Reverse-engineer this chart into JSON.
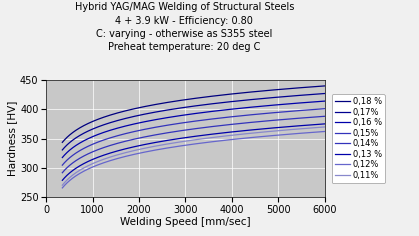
{
  "title_lines": [
    "Hybrid YAG/MAG Welding of Structural Steels",
    "4 + 3.9 kW - Efficiency: 0.80",
    "C: varying - otherwise as S355 steel",
    "Preheat temperature: 20 deg C"
  ],
  "xlabel": "Welding Speed [mm/sec]",
  "ylabel": "Hardness [HV]",
  "xlim": [
    0,
    6000
  ],
  "ylim": [
    250,
    450
  ],
  "xticks": [
    0,
    1000,
    2000,
    3000,
    4000,
    5000,
    6000
  ],
  "yticks": [
    250,
    300,
    350,
    400,
    450
  ],
  "background_color": "#c8c8c8",
  "fig_background": "#f0f0f0",
  "series": [
    {
      "label": "0,18 %",
      "color": "#00007F",
      "A": 155,
      "x0": 50,
      "k": 0.0012
    },
    {
      "label": "0,17%",
      "color": "#00008B",
      "A": 144,
      "x0": 50,
      "k": 0.0012
    },
    {
      "label": "0,16 %",
      "color": "#1515A0",
      "A": 133,
      "x0": 50,
      "k": 0.0012
    },
    {
      "label": "0,15%",
      "color": "#2828AA",
      "A": 122,
      "x0": 50,
      "k": 0.0012
    },
    {
      "label": "0,14%",
      "color": "#3535B5",
      "A": 111,
      "x0": 50,
      "k": 0.0012
    },
    {
      "label": "0,13 %",
      "color": "#4444BB",
      "A": 100,
      "x0": 50,
      "k": 0.0012
    },
    {
      "label": "0,12%",
      "color": "#6060CC",
      "A": 89,
      "x0": 50,
      "k": 0.0012
    },
    {
      "label": "0,11%",
      "color": "#8080CC",
      "A": 78,
      "x0": 50,
      "k": 0.0012
    }
  ],
  "title_fontsize": 7,
  "axis_label_fontsize": 7.5,
  "tick_fontsize": 7,
  "legend_fontsize": 6
}
